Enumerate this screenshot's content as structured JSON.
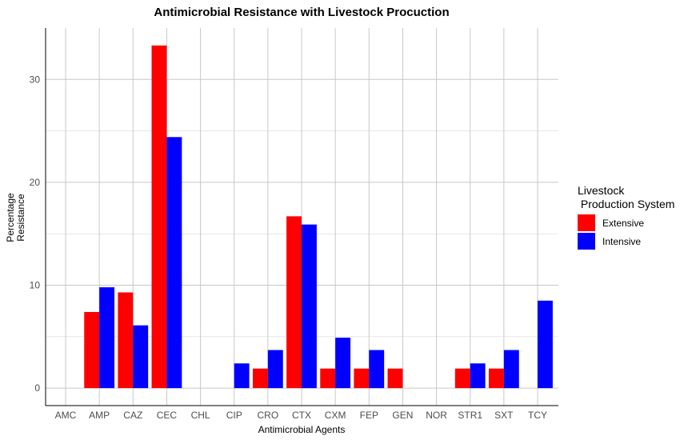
{
  "chart_data": {
    "type": "bar",
    "title": "Antimicrobial Resistance with Livestock Procuction",
    "xlabel": "Antimicrobial Agents",
    "ylabel_lines": [
      "Percentage",
      "Resistance"
    ],
    "categories": [
      "AMC",
      "AMP",
      "CAZ",
      "CEC",
      "CHL",
      "CIP",
      "CRO",
      "CTX",
      "CXM",
      "FEP",
      "GEN",
      "NOR",
      "STR1",
      "SXT",
      "TCY"
    ],
    "series": [
      {
        "name": "Extensive",
        "color": "#ff0000",
        "values": [
          null,
          7.4,
          9.3,
          33.3,
          null,
          null,
          1.9,
          16.7,
          1.9,
          1.9,
          1.9,
          null,
          1.9,
          1.9,
          null
        ]
      },
      {
        "name": "Intensive",
        "color": "#0000ff",
        "values": [
          null,
          9.8,
          6.1,
          24.4,
          null,
          2.4,
          3.7,
          15.9,
          4.9,
          3.7,
          null,
          null,
          2.4,
          3.7,
          8.5
        ]
      }
    ],
    "yticks": [
      0,
      10,
      20,
      30
    ],
    "ylim": [
      -1.7,
      35
    ],
    "grid": true,
    "legend": {
      "title_lines": [
        "Livestock",
        " Production System"
      ],
      "placement": "right"
    }
  }
}
